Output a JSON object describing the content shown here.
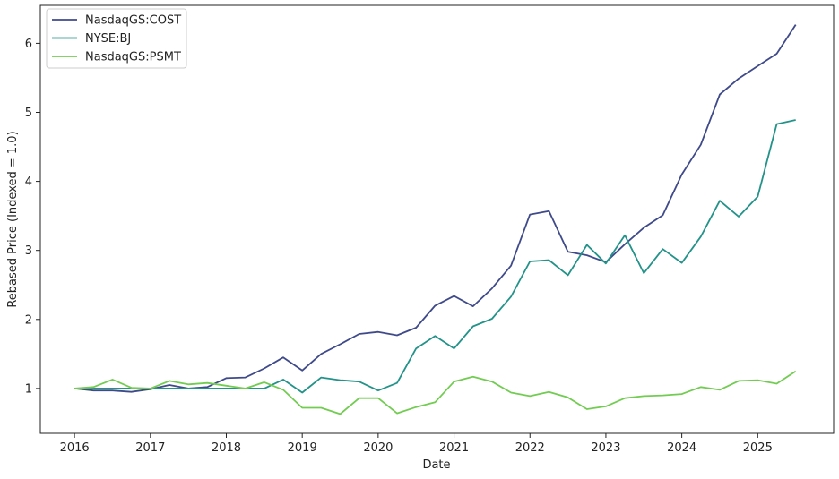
{
  "chart_data": {
    "type": "line",
    "title": "",
    "xlabel": "Date",
    "ylabel": "Rebased Price (Indexed = 1.0)",
    "xlim": [
      2015.55,
      2026.0
    ],
    "ylim": [
      0.35,
      6.55
    ],
    "x_ticks": [
      2016,
      2017,
      2018,
      2019,
      2020,
      2021,
      2022,
      2023,
      2024,
      2025
    ],
    "x_tick_labels": [
      "2016",
      "2017",
      "2018",
      "2019",
      "2020",
      "2021",
      "2022",
      "2023",
      "2024",
      "2025"
    ],
    "y_ticks": [
      1,
      2,
      3,
      4,
      5,
      6
    ],
    "y_tick_labels": [
      "1",
      "2",
      "3",
      "4",
      "5",
      "6"
    ],
    "grid": false,
    "legend": "top-left",
    "x": [
      2016.0,
      2016.25,
      2016.5,
      2016.75,
      2017.0,
      2017.25,
      2017.5,
      2017.75,
      2018.0,
      2018.25,
      2018.5,
      2018.75,
      2019.0,
      2019.25,
      2019.5,
      2019.75,
      2020.0,
      2020.25,
      2020.5,
      2020.75,
      2021.0,
      2021.25,
      2021.5,
      2021.75,
      2022.0,
      2022.25,
      2022.5,
      2022.75,
      2023.0,
      2023.25,
      2023.5,
      2023.75,
      2024.0,
      2024.25,
      2024.5,
      2024.75,
      2025.0,
      2025.25,
      2025.5
    ],
    "series": [
      {
        "name": "NasdaqGS:COST",
        "color": "#3f4a8a",
        "values": [
          1.0,
          0.97,
          0.97,
          0.95,
          0.99,
          1.05,
          1.0,
          1.02,
          1.15,
          1.16,
          1.29,
          1.45,
          1.26,
          1.5,
          1.64,
          1.79,
          1.82,
          1.77,
          1.88,
          2.2,
          2.34,
          2.19,
          2.45,
          2.78,
          3.52,
          3.57,
          2.98,
          2.93,
          2.83,
          3.09,
          3.33,
          3.51,
          4.1,
          4.53,
          5.26,
          5.49,
          5.67,
          5.85,
          6.27
        ]
      },
      {
        "name": "NYSE:BJ",
        "color": "#23938a",
        "values": [
          1.0,
          1.0,
          1.0,
          1.0,
          1.0,
          1.0,
          1.0,
          1.0,
          1.0,
          1.0,
          1.0,
          1.13,
          0.94,
          1.16,
          1.12,
          1.1,
          0.97,
          1.08,
          1.58,
          1.76,
          1.58,
          1.9,
          2.01,
          2.33,
          2.84,
          2.86,
          2.64,
          3.08,
          2.81,
          3.22,
          2.67,
          3.02,
          2.82,
          3.2,
          3.72,
          3.49,
          3.78,
          4.83,
          4.89
        ]
      },
      {
        "name": "NasdaqGS:PSMT",
        "color": "#72cc52",
        "values": [
          1.0,
          1.02,
          1.13,
          1.01,
          1.0,
          1.11,
          1.06,
          1.08,
          1.04,
          1.0,
          1.09,
          0.98,
          0.72,
          0.72,
          0.63,
          0.86,
          0.86,
          0.64,
          0.73,
          0.8,
          1.1,
          1.17,
          1.1,
          0.94,
          0.89,
          0.95,
          0.87,
          0.7,
          0.74,
          0.86,
          0.89,
          0.9,
          0.92,
          1.02,
          0.98,
          1.11,
          1.12,
          1.07,
          1.25
        ]
      }
    ]
  }
}
